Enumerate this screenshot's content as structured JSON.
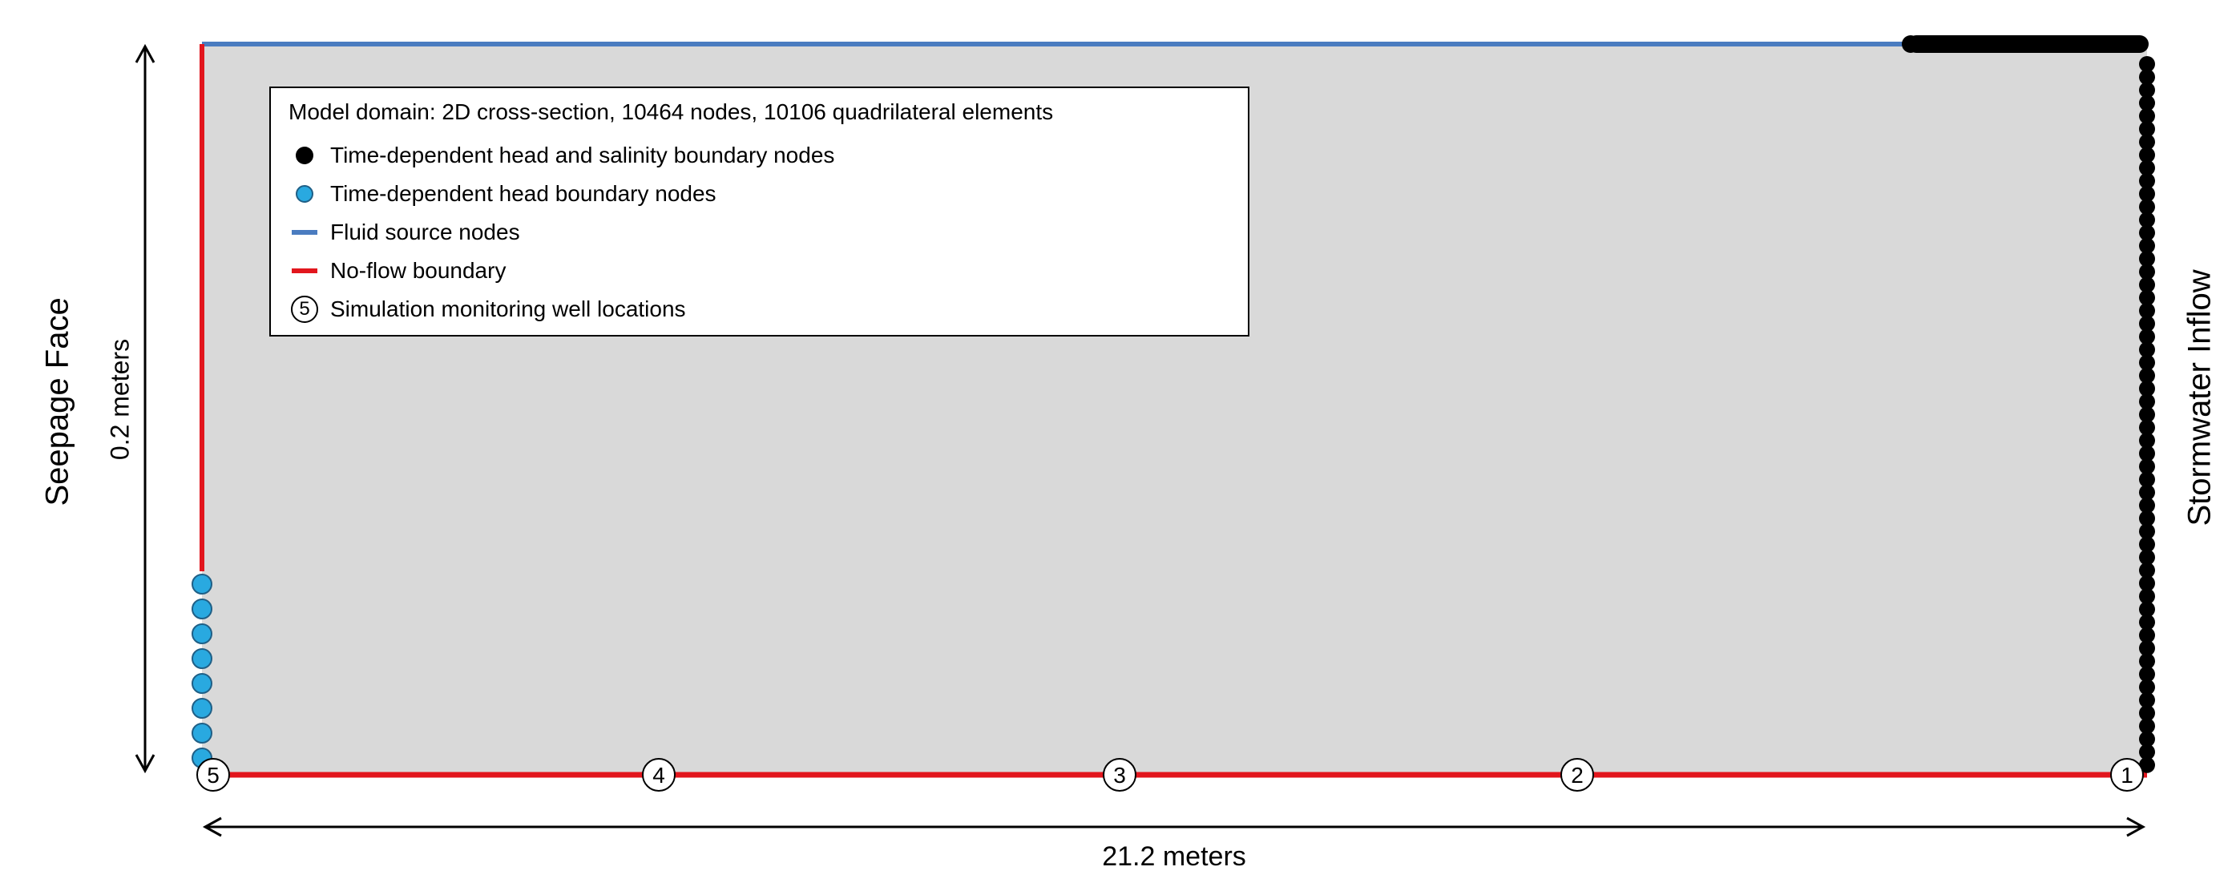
{
  "legend": {
    "title": "Model domain: 2D cross-section, 10464 nodes, 10106 quadrilateral elements",
    "items": [
      {
        "symbol": "black-dot",
        "label": "Time-dependent  head and salinity boundary nodes"
      },
      {
        "symbol": "blue-dot",
        "label": "Time-dependent  head boundary nodes"
      },
      {
        "symbol": "blue-line",
        "label": "Fluid source nodes"
      },
      {
        "symbol": "red-line",
        "label": "No-flow boundary"
      },
      {
        "symbol": "well-circle",
        "symbol_text": "5",
        "label": "Simulation monitoring  well locations"
      }
    ]
  },
  "labels": {
    "left_side": "Seepage Face",
    "right_side": "Stormwater Inflow",
    "height_dimension": "0.2 meters",
    "width_dimension": "21.2  meters"
  },
  "wells": [
    "5",
    "4",
    "3",
    "2",
    "1"
  ],
  "colors": {
    "domain_fill": "#d9d9d9",
    "fluid_source": "#4a7cc0",
    "no_flow": "#e2161d",
    "head_salinity_nodes": "#000000",
    "head_nodes": "#29a9e0"
  }
}
